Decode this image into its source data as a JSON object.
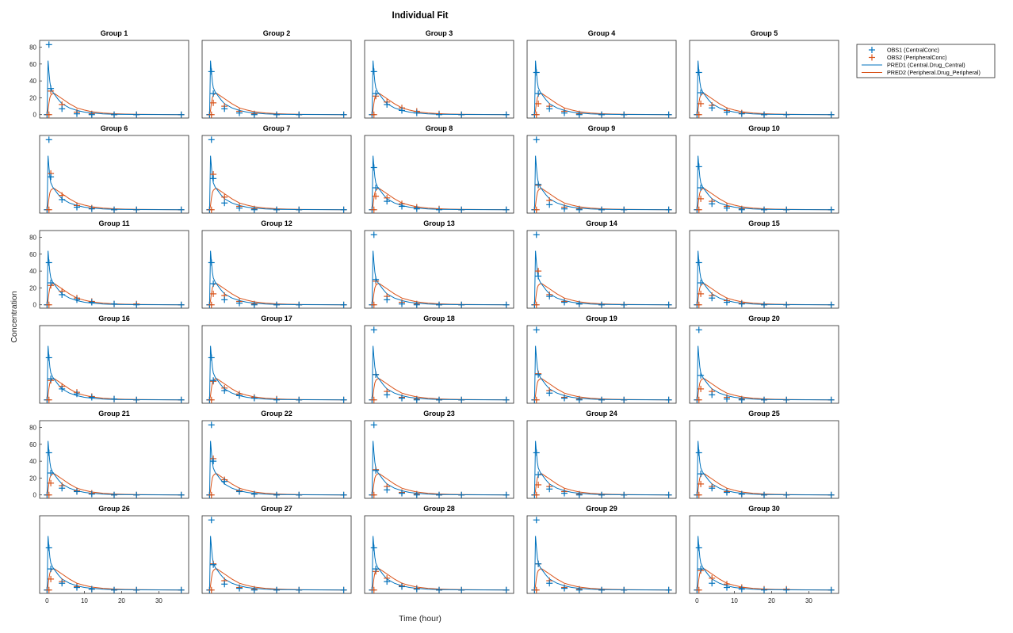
{
  "chart_data": {
    "type": "line",
    "title": "Individual Fit",
    "xlabel": "Time (hour)",
    "ylabel": "Concentration",
    "xlim": [
      -2,
      38
    ],
    "ylim": [
      -4,
      88
    ],
    "xticks": [
      0,
      10,
      20,
      30
    ],
    "yticks": [
      0,
      20,
      40,
      60,
      80
    ],
    "layout": {
      "rows": 6,
      "cols": 5
    },
    "legend_position": "right",
    "grid": false,
    "colors": {
      "obs1": "#0072BD",
      "obs2": "#D95319",
      "pred1": "#0072BD",
      "pred2": "#D95319"
    },
    "legend": [
      {
        "key": "obs1",
        "label": "OBS1 (CentralConc)",
        "marker": "+"
      },
      {
        "key": "obs2",
        "label": "OBS2 (PeripheralConc)",
        "marker": "+"
      },
      {
        "key": "pred1",
        "label": "PRED1 (Central.Drug_Central)",
        "marker": "line"
      },
      {
        "key": "pred2",
        "label": "PRED2 (Peripheral.Drug_Peripheral)",
        "marker": "line"
      }
    ],
    "obs_times": [
      0,
      0.5,
      1,
      4,
      8,
      12,
      18,
      24,
      36
    ],
    "pred_x": [
      0,
      0.25,
      0.5,
      0.75,
      1,
      1.5,
      2,
      3,
      4,
      6,
      8,
      10,
      12,
      15,
      18,
      21,
      24,
      30,
      36
    ],
    "pred1": [
      0,
      64,
      50,
      39,
      32,
      27,
      24,
      18,
      13,
      8,
      5,
      3,
      2,
      1,
      0.5,
      0.3,
      0.2,
      0.1,
      0
    ],
    "pred2": [
      0,
      5,
      14,
      20,
      23,
      25,
      25,
      22,
      19,
      13,
      8,
      5.5,
      3.5,
      2,
      1.2,
      0.7,
      0.4,
      0.2,
      0
    ],
    "panels": [
      {
        "title": "Group 1",
        "obs1": [
          0,
          83,
          31,
          7,
          1,
          0,
          0,
          0,
          0
        ],
        "obs2": [
          0,
          0,
          28,
          12,
          3,
          1,
          0,
          0,
          0
        ]
      },
      {
        "title": "Group 2",
        "obs1": [
          0,
          51,
          25,
          7,
          2,
          0,
          0,
          0,
          0
        ],
        "obs2": [
          0,
          0,
          14,
          10,
          4,
          1,
          0,
          0,
          0
        ]
      },
      {
        "title": "Group 3",
        "obs1": [
          0,
          51,
          25,
          12,
          5,
          2,
          0,
          0,
          0
        ],
        "obs2": [
          0,
          0,
          22,
          15,
          8,
          4,
          1,
          0,
          0
        ]
      },
      {
        "title": "Group 4",
        "obs1": [
          0,
          50,
          25,
          7,
          2,
          0,
          0,
          0,
          0
        ],
        "obs2": [
          0,
          0,
          13,
          10,
          4,
          1,
          0,
          0,
          0
        ]
      },
      {
        "title": "Group 5",
        "obs1": [
          0,
          50,
          26,
          8,
          3,
          1,
          0,
          0,
          0
        ],
        "obs2": [
          0,
          0,
          13,
          11,
          5,
          2,
          0,
          0,
          0
        ]
      },
      {
        "title": "Group 6",
        "obs1": [
          0,
          83,
          39,
          12,
          3,
          1,
          0,
          0,
          0
        ],
        "obs2": [
          0,
          0,
          43,
          17,
          5,
          2,
          0,
          0,
          0
        ]
      },
      {
        "title": "Group 7",
        "obs1": [
          0,
          83,
          37,
          8,
          2,
          0,
          0,
          0,
          0
        ],
        "obs2": [
          0,
          0,
          42,
          15,
          4,
          1,
          0,
          0,
          0
        ]
      },
      {
        "title": "Group 8",
        "obs1": [
          0,
          50,
          26,
          10,
          4,
          1,
          0,
          0,
          0
        ],
        "obs2": [
          0,
          0,
          16,
          14,
          7,
          3,
          1,
          0,
          0
        ]
      },
      {
        "title": "Group 9",
        "obs1": [
          0,
          83,
          30,
          6,
          1,
          0,
          0,
          0,
          0
        ],
        "obs2": [
          0,
          0,
          29,
          11,
          3,
          1,
          0,
          0,
          0
        ]
      },
      {
        "title": "Group 10",
        "obs1": [
          0,
          51,
          26,
          7,
          2,
          0,
          0,
          0,
          0
        ],
        "obs2": [
          0,
          0,
          13,
          10,
          4,
          1,
          0,
          0,
          0
        ]
      },
      {
        "title": "Group 11",
        "obs1": [
          0,
          50,
          26,
          12,
          6,
          3,
          1,
          0,
          0
        ],
        "obs2": [
          0,
          0,
          23,
          16,
          8,
          4,
          1,
          1,
          0
        ]
      },
      {
        "title": "Group 12",
        "obs1": [
          0,
          50,
          25,
          6,
          2,
          0,
          0,
          0,
          0
        ],
        "obs2": [
          0,
          0,
          13,
          11,
          4,
          1,
          0,
          0,
          0
        ]
      },
      {
        "title": "Group 13",
        "obs1": [
          0,
          83,
          30,
          6,
          1,
          0,
          0,
          0,
          0
        ],
        "obs2": [
          0,
          0,
          28,
          10,
          3,
          1,
          0,
          0,
          0
        ]
      },
      {
        "title": "Group 14",
        "obs1": [
          0,
          83,
          34,
          10,
          3,
          1,
          0,
          0,
          0
        ],
        "obs2": [
          0,
          0,
          40,
          12,
          4,
          1,
          0,
          0,
          0
        ]
      },
      {
        "title": "Group 15",
        "obs1": [
          0,
          50,
          26,
          8,
          3,
          1,
          0,
          0,
          0
        ],
        "obs2": [
          0,
          0,
          13,
          11,
          5,
          2,
          0,
          0,
          0
        ]
      },
      {
        "title": "Group 16",
        "obs1": [
          0,
          50,
          25,
          13,
          7,
          3,
          1,
          0,
          0
        ],
        "obs2": [
          0,
          0,
          23,
          16,
          9,
          4,
          1,
          0,
          0
        ]
      },
      {
        "title": "Group 17",
        "obs1": [
          0,
          50,
          23,
          11,
          5,
          2,
          0,
          0,
          0
        ],
        "obs2": [
          0,
          0,
          22,
          14,
          7,
          3,
          1,
          0,
          0
        ]
      },
      {
        "title": "Group 18",
        "obs1": [
          0,
          83,
          30,
          6,
          2,
          0,
          0,
          0,
          0
        ],
        "obs2": [
          0,
          0,
          30,
          10,
          3,
          1,
          0,
          0,
          0
        ]
      },
      {
        "title": "Group 19",
        "obs1": [
          0,
          83,
          30,
          8,
          2,
          0,
          0,
          0,
          0
        ],
        "obs2": [
          0,
          0,
          31,
          11,
          3,
          1,
          0,
          0,
          0
        ]
      },
      {
        "title": "Group 20",
        "obs1": [
          0,
          83,
          29,
          6,
          1,
          0,
          0,
          0,
          0
        ],
        "obs2": [
          0,
          0,
          13,
          10,
          3,
          1,
          0,
          0,
          0
        ]
      },
      {
        "title": "Group 21",
        "obs1": [
          0,
          50,
          26,
          8,
          4,
          1,
          0,
          0,
          0
        ],
        "obs2": [
          0,
          0,
          14,
          11,
          5,
          2,
          0,
          0,
          0
        ]
      },
      {
        "title": "Group 22",
        "obs1": [
          0,
          83,
          40,
          16,
          4,
          1,
          0,
          0,
          0
        ],
        "obs2": [
          0,
          0,
          43,
          18,
          5,
          1,
          0,
          0,
          0
        ]
      },
      {
        "title": "Group 23",
        "obs1": [
          0,
          83,
          29,
          6,
          2,
          0,
          0,
          0,
          0
        ],
        "obs2": [
          0,
          0,
          30,
          10,
          3,
          1,
          0,
          0,
          0
        ]
      },
      {
        "title": "Group 24",
        "obs1": [
          0,
          50,
          24,
          7,
          2,
          0,
          0,
          0,
          0
        ],
        "obs2": [
          0,
          0,
          12,
          10,
          4,
          1,
          0,
          0,
          0
        ]
      },
      {
        "title": "Group 25",
        "obs1": [
          0,
          50,
          25,
          8,
          3,
          1,
          0,
          0,
          0
        ],
        "obs2": [
          0,
          0,
          13,
          10,
          4,
          1,
          0,
          0,
          0
        ]
      },
      {
        "title": "Group 26",
        "obs1": [
          0,
          50,
          25,
          8,
          3,
          1,
          0,
          0,
          0
        ],
        "obs2": [
          0,
          0,
          13,
          10,
          4,
          1,
          0,
          0,
          0
        ]
      },
      {
        "title": "Group 27",
        "obs1": [
          0,
          83,
          30,
          7,
          2,
          0,
          0,
          0,
          0
        ],
        "obs2": [
          0,
          0,
          31,
          11,
          3,
          1,
          0,
          0,
          0
        ]
      },
      {
        "title": "Group 28",
        "obs1": [
          0,
          50,
          25,
          10,
          4,
          1,
          0,
          0,
          0
        ],
        "obs2": [
          0,
          0,
          22,
          14,
          5,
          2,
          0,
          0,
          0
        ]
      },
      {
        "title": "Group 29",
        "obs1": [
          0,
          83,
          31,
          8,
          2,
          0,
          0,
          0,
          0
        ],
        "obs2": [
          0,
          0,
          31,
          11,
          3,
          1,
          0,
          0,
          0
        ]
      },
      {
        "title": "Group 30",
        "obs1": [
          0,
          50,
          25,
          8,
          3,
          1,
          0,
          0,
          0
        ],
        "obs2": [
          0,
          0,
          23,
          14,
          7,
          3,
          1,
          1,
          0
        ]
      }
    ]
  }
}
